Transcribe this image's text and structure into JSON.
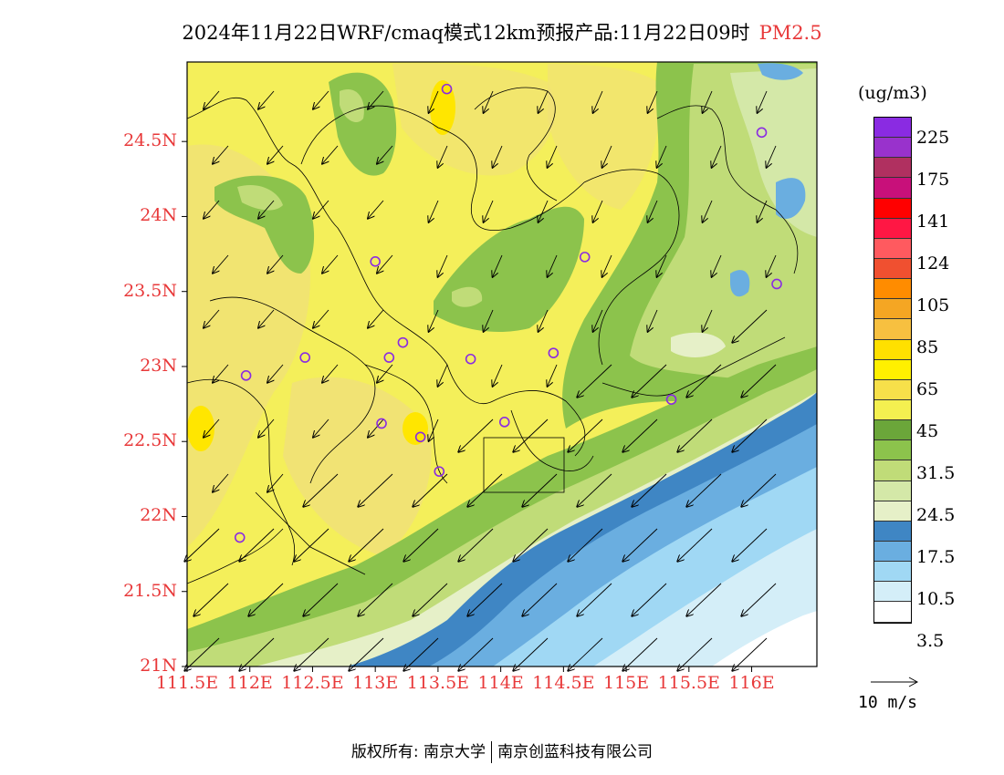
{
  "title": {
    "main": "2024年11月22日WRF/cmaq模式12km预报产品:11月22日09时",
    "pollutant": "PM2.5"
  },
  "axes": {
    "lat_labels": [
      "24.5N",
      "24N",
      "23.5N",
      "23N",
      "22.5N",
      "22N",
      "21.5N",
      "21N"
    ],
    "lat_values": [
      24.5,
      24.0,
      23.5,
      23.0,
      22.5,
      22.0,
      21.5,
      21.0
    ],
    "lon_labels": [
      "111.5E",
      "112E",
      "112.5E",
      "113E",
      "113.5E",
      "114E",
      "114.5E",
      "115E",
      "115.5E",
      "116E"
    ],
    "lon_values": [
      111.5,
      112.0,
      112.5,
      113.0,
      113.5,
      114.0,
      114.5,
      115.0,
      115.5,
      116.0
    ],
    "lon_range": [
      111.5,
      116.52
    ],
    "lat_range": [
      21.0,
      25.03
    ]
  },
  "colorbar": {
    "unit": "(ug/m3)",
    "labels": [
      "225",
      "175",
      "141",
      "124",
      "105",
      "85",
      "65",
      "45",
      "31.5",
      "24.5",
      "17.5",
      "10.5",
      "3.5"
    ],
    "colors": [
      "#8a2be2",
      "#9932cc",
      "#b03060",
      "#c8107a",
      "#ff0000",
      "#ff1744",
      "#ff5a5f",
      "#f05030",
      "#ff8c00",
      "#f5a623",
      "#f7c040",
      "#ffe000",
      "#fff000",
      "#f7e04a",
      "#f4f050",
      "#6ba63a",
      "#8cc34c",
      "#c0dc78",
      "#d4e8a8",
      "#e6f0c8",
      "#3f86c4",
      "#6aaee0",
      "#a0d8f4",
      "#d4eef8",
      "#ffffff"
    ]
  },
  "wind_reference": {
    "label": "10 m/s"
  },
  "stations": [
    {
      "lon": 113.57,
      "lat": 24.85
    },
    {
      "lon": 116.08,
      "lat": 24.56
    },
    {
      "lon": 113.0,
      "lat": 23.7
    },
    {
      "lon": 114.67,
      "lat": 23.73
    },
    {
      "lon": 116.2,
      "lat": 23.55
    },
    {
      "lon": 112.44,
      "lat": 23.06
    },
    {
      "lon": 113.11,
      "lat": 23.06
    },
    {
      "lon": 113.22,
      "lat": 23.16
    },
    {
      "lon": 113.76,
      "lat": 23.05
    },
    {
      "lon": 114.42,
      "lat": 23.09
    },
    {
      "lon": 111.97,
      "lat": 22.94
    },
    {
      "lon": 115.36,
      "lat": 22.78
    },
    {
      "lon": 113.05,
      "lat": 22.62
    },
    {
      "lon": 113.36,
      "lat": 22.53
    },
    {
      "lon": 114.03,
      "lat": 22.63
    },
    {
      "lon": 113.51,
      "lat": 22.3
    },
    {
      "lon": 111.92,
      "lat": 21.86
    }
  ],
  "copyright": {
    "left": "版权所有: 南京大学",
    "right": "南京创蓝科技有限公司"
  }
}
